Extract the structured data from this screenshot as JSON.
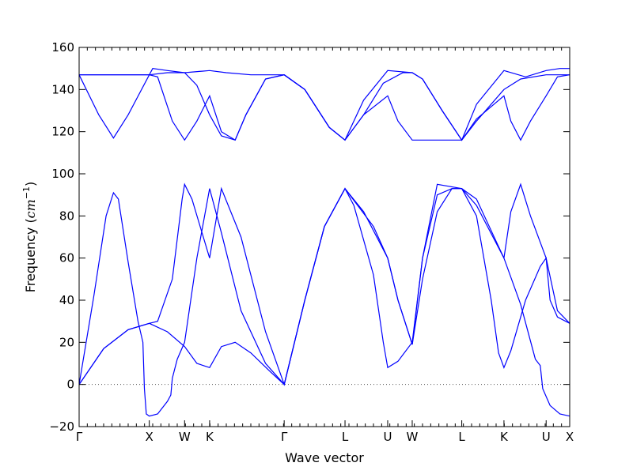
{
  "chart_data": {
    "type": "line",
    "xlabel": "Wave vector",
    "ylabel": "Frequency (",
    "ylabel_unit": "cm",
    "ylabel_unit_exp": "−1",
    "ylabel_close": ")",
    "ylim": [
      -20,
      160
    ],
    "yticks": [
      -20,
      0,
      20,
      40,
      60,
      80,
      100,
      120,
      140,
      160
    ],
    "xlim": [
      0,
      1
    ],
    "high_symmetry_points": [
      {
        "label": "Γ",
        "x": 0.0
      },
      {
        "label": "X",
        "x": 0.143
      },
      {
        "label": "W",
        "x": 0.215
      },
      {
        "label": "K",
        "x": 0.266
      },
      {
        "label": "Γ",
        "x": 0.418
      },
      {
        "label": "L",
        "x": 0.542
      },
      {
        "label": "U",
        "x": 0.629
      },
      {
        "label": "W",
        "x": 0.679
      },
      {
        "label": "L",
        "x": 0.78
      },
      {
        "label": "K",
        "x": 0.866
      },
      {
        "label": "U",
        "x": 0.952
      },
      {
        "label": "X",
        "x": 1.0
      }
    ],
    "minor_ticks": 60,
    "zero_line": true,
    "line_color": "#0000ff",
    "series": [
      {
        "points": [
          [
            0.0,
            0
          ],
          [
            0.03,
            42
          ],
          [
            0.055,
            80
          ],
          [
            0.07,
            91
          ],
          [
            0.08,
            88
          ],
          [
            0.1,
            58
          ],
          [
            0.12,
            30
          ],
          [
            0.13,
            20
          ],
          [
            0.133,
            -2
          ],
          [
            0.137,
            -14
          ],
          [
            0.143,
            -15
          ],
          [
            0.16,
            -14
          ],
          [
            0.18,
            -8
          ],
          [
            0.187,
            -5
          ],
          [
            0.19,
            3
          ],
          [
            0.2,
            12
          ],
          [
            0.215,
            20
          ],
          [
            0.24,
            60
          ],
          [
            0.266,
            93
          ],
          [
            0.29,
            72
          ],
          [
            0.33,
            35
          ],
          [
            0.38,
            10
          ],
          [
            0.418,
            0
          ],
          [
            0.46,
            40
          ],
          [
            0.5,
            75
          ],
          [
            0.542,
            93
          ],
          [
            0.56,
            85
          ],
          [
            0.6,
            52
          ],
          [
            0.62,
            20
          ],
          [
            0.629,
            8
          ],
          [
            0.65,
            11
          ],
          [
            0.679,
            20
          ],
          [
            0.7,
            60
          ],
          [
            0.73,
            90
          ],
          [
            0.76,
            93
          ],
          [
            0.78,
            93
          ],
          [
            0.81,
            80
          ],
          [
            0.84,
            40
          ],
          [
            0.855,
            15
          ],
          [
            0.866,
            8
          ],
          [
            0.88,
            16
          ],
          [
            0.91,
            40
          ],
          [
            0.94,
            56
          ],
          [
            0.952,
            60
          ],
          [
            0.96,
            40
          ],
          [
            0.975,
            32
          ],
          [
            1.0,
            29
          ]
        ]
      },
      {
        "points": [
          [
            0.0,
            0
          ],
          [
            0.05,
            17
          ],
          [
            0.1,
            26
          ],
          [
            0.143,
            29
          ],
          [
            0.18,
            25
          ],
          [
            0.215,
            18
          ],
          [
            0.24,
            10
          ],
          [
            0.266,
            8
          ],
          [
            0.29,
            18
          ],
          [
            0.318,
            20
          ],
          [
            0.35,
            15
          ],
          [
            0.39,
            6
          ],
          [
            0.418,
            0
          ],
          [
            0.46,
            40
          ],
          [
            0.5,
            75
          ],
          [
            0.542,
            93
          ],
          [
            0.6,
            75
          ],
          [
            0.629,
            60
          ],
          [
            0.65,
            40
          ],
          [
            0.679,
            19
          ],
          [
            0.7,
            50
          ],
          [
            0.73,
            82
          ],
          [
            0.76,
            93
          ],
          [
            0.78,
            93
          ],
          [
            0.81,
            85
          ],
          [
            0.866,
            60
          ],
          [
            0.9,
            38
          ],
          [
            0.93,
            12
          ],
          [
            0.94,
            9
          ],
          [
            0.945,
            -2
          ],
          [
            0.96,
            -10
          ],
          [
            0.98,
            -14
          ],
          [
            1.0,
            -15
          ]
        ]
      },
      {
        "points": [
          [
            0.0,
            0
          ],
          [
            0.05,
            17
          ],
          [
            0.1,
            26
          ],
          [
            0.143,
            29
          ],
          [
            0.16,
            30
          ],
          [
            0.19,
            50
          ],
          [
            0.21,
            88
          ],
          [
            0.215,
            95
          ],
          [
            0.23,
            88
          ],
          [
            0.266,
            60
          ],
          [
            0.29,
            93
          ],
          [
            0.33,
            70
          ],
          [
            0.38,
            25
          ],
          [
            0.418,
            0
          ],
          [
            0.46,
            40
          ],
          [
            0.5,
            75
          ],
          [
            0.542,
            93
          ],
          [
            0.58,
            82
          ],
          [
            0.629,
            60
          ],
          [
            0.65,
            40
          ],
          [
            0.679,
            19
          ],
          [
            0.7,
            60
          ],
          [
            0.73,
            95
          ],
          [
            0.78,
            93
          ],
          [
            0.81,
            88
          ],
          [
            0.866,
            60
          ],
          [
            0.88,
            82
          ],
          [
            0.9,
            95
          ],
          [
            0.92,
            80
          ],
          [
            0.952,
            60
          ],
          [
            0.975,
            35
          ],
          [
            1.0,
            29
          ]
        ]
      },
      {
        "points": [
          [
            0.0,
            147
          ],
          [
            0.04,
            128
          ],
          [
            0.07,
            117
          ],
          [
            0.1,
            128
          ],
          [
            0.143,
            147
          ],
          [
            0.16,
            146
          ],
          [
            0.19,
            125
          ],
          [
            0.215,
            116
          ],
          [
            0.24,
            125
          ],
          [
            0.266,
            137
          ],
          [
            0.29,
            120
          ],
          [
            0.318,
            116
          ],
          [
            0.34,
            128
          ],
          [
            0.38,
            145
          ],
          [
            0.418,
            147
          ],
          [
            0.46,
            140
          ],
          [
            0.51,
            122
          ],
          [
            0.542,
            116
          ],
          [
            0.58,
            128
          ],
          [
            0.629,
            137
          ],
          [
            0.65,
            125
          ],
          [
            0.679,
            116
          ],
          [
            0.7,
            116
          ],
          [
            0.75,
            116
          ],
          [
            0.78,
            116
          ],
          [
            0.81,
            126
          ],
          [
            0.866,
            137
          ],
          [
            0.88,
            125
          ],
          [
            0.9,
            116
          ],
          [
            0.92,
            125
          ],
          [
            0.952,
            137
          ],
          [
            0.975,
            146
          ],
          [
            1.0,
            147
          ]
        ]
      },
      {
        "points": [
          [
            0.0,
            147
          ],
          [
            0.07,
            147
          ],
          [
            0.143,
            147
          ],
          [
            0.18,
            148
          ],
          [
            0.215,
            148
          ],
          [
            0.24,
            142
          ],
          [
            0.266,
            128
          ],
          [
            0.29,
            118
          ],
          [
            0.318,
            116
          ],
          [
            0.34,
            128
          ],
          [
            0.38,
            145
          ],
          [
            0.418,
            147
          ],
          [
            0.46,
            140
          ],
          [
            0.51,
            122
          ],
          [
            0.542,
            116
          ],
          [
            0.58,
            128
          ],
          [
            0.62,
            143
          ],
          [
            0.66,
            148
          ],
          [
            0.679,
            148
          ],
          [
            0.7,
            145
          ],
          [
            0.74,
            130
          ],
          [
            0.78,
            116
          ],
          [
            0.81,
            125
          ],
          [
            0.866,
            140
          ],
          [
            0.9,
            145
          ],
          [
            0.952,
            147
          ],
          [
            1.0,
            147
          ]
        ]
      },
      {
        "points": [
          [
            0.0,
            147
          ],
          [
            0.07,
            147
          ],
          [
            0.143,
            147
          ],
          [
            0.15,
            150
          ],
          [
            0.18,
            149
          ],
          [
            0.215,
            148
          ],
          [
            0.266,
            149
          ],
          [
            0.3,
            148
          ],
          [
            0.35,
            147
          ],
          [
            0.418,
            147
          ],
          [
            0.46,
            140
          ],
          [
            0.51,
            122
          ],
          [
            0.542,
            116
          ],
          [
            0.58,
            135
          ],
          [
            0.629,
            149
          ],
          [
            0.679,
            148
          ],
          [
            0.7,
            145
          ],
          [
            0.74,
            130
          ],
          [
            0.78,
            116
          ],
          [
            0.81,
            133
          ],
          [
            0.866,
            149
          ],
          [
            0.91,
            146
          ],
          [
            0.952,
            149
          ],
          [
            0.98,
            150
          ],
          [
            1.0,
            150
          ]
        ]
      }
    ]
  }
}
